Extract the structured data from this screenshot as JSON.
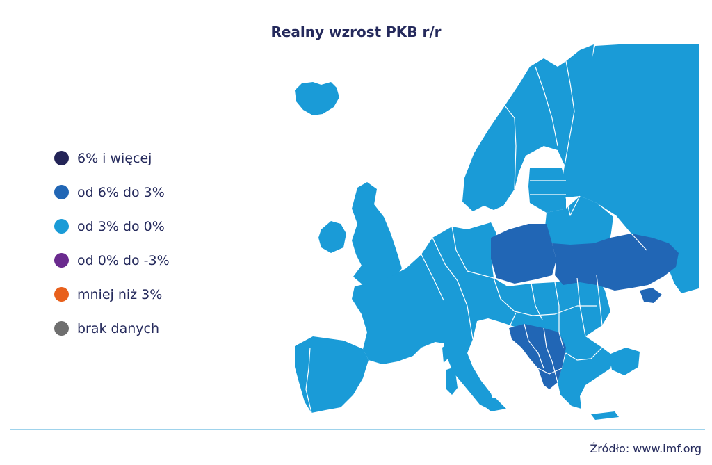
{
  "title": "Realny wzrost PKB r/r",
  "legend": [
    {
      "label": "6% i więcej",
      "color": "#232457"
    },
    {
      "label": "od 6% do 3%",
      "color": "#2166b5"
    },
    {
      "label": "od 3% do 0%",
      "color": "#1a9bd7"
    },
    {
      "label": "od 0% do -3%",
      "color": "#6a2a8e"
    },
    {
      "label": "mniej niż 3%",
      "color": "#e8601c"
    },
    {
      "label": "brak danych",
      "color": "#6f6f6f"
    }
  ],
  "map": {
    "region": "Europe",
    "categories": {
      "od 6% do 3%": [
        "Poland",
        "Ukraine",
        "Crimea",
        "Bosnia and Herzegovina",
        "Serbia",
        "Montenegro",
        "Kosovo",
        "North Macedonia",
        "Albania"
      ],
      "od 3% do 0%": [
        "Iceland",
        "Ireland",
        "United Kingdom",
        "Portugal",
        "Spain",
        "France",
        "Belgium",
        "Netherlands",
        "Luxembourg",
        "Germany",
        "Denmark",
        "Norway",
        "Sweden",
        "Finland",
        "Estonia",
        "Latvia",
        "Lithuania",
        "Belarus",
        "Russia",
        "Czech Republic",
        "Slovakia",
        "Austria",
        "Switzerland",
        "Italy",
        "Slovenia",
        "Croatia",
        "Hungary",
        "Romania",
        "Moldova",
        "Bulgaria",
        "Greece",
        "Turkey",
        "Corsica",
        "Sardinia",
        "Sicily",
        "Crete"
      ]
    }
  },
  "source": "Źródło: www.imf.org"
}
